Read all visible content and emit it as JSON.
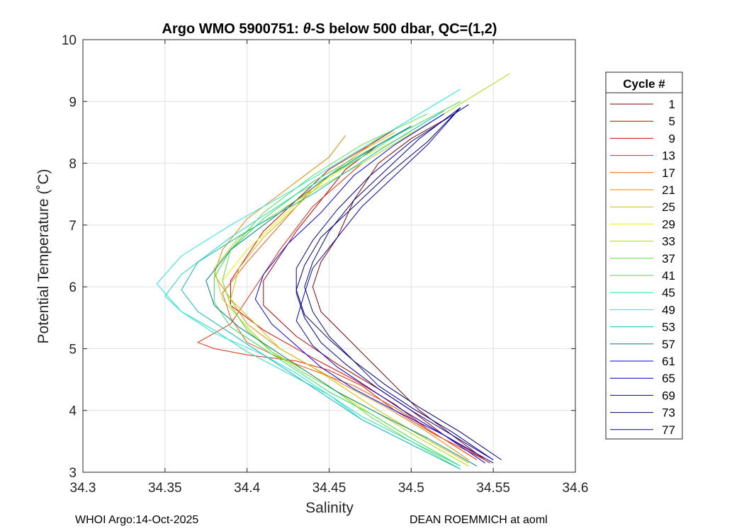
{
  "chart_data": {
    "type": "line",
    "title_prefix": "Argo WMO 5900751: ",
    "title_theta": "θ",
    "title_suffix": "-S below 500 dbar,  QC=(1,2)",
    "xlabel": "Salinity",
    "ylabel": "Potential Temperature (˚C)",
    "xlim": [
      34.3,
      34.6
    ],
    "ylim": [
      3,
      10
    ],
    "xticks": [
      34.3,
      34.35,
      34.4,
      34.45,
      34.5,
      34.55,
      34.6
    ],
    "xtick_labels": [
      "34.3",
      "34.35",
      "34.4",
      "34.45",
      "34.5",
      "34.55",
      "34.6"
    ],
    "yticks": [
      3,
      4,
      5,
      6,
      7,
      8,
      9,
      10
    ],
    "ytick_labels": [
      "3",
      "4",
      "5",
      "6",
      "7",
      "8",
      "9",
      "10"
    ],
    "grid": true,
    "legend": {
      "title": "Cycle #",
      "location": "outside-right",
      "entries": [
        {
          "label": "1",
          "color": "#800000"
        },
        {
          "label": "5",
          "color": "#b30000"
        },
        {
          "label": "9",
          "color": "#e00000"
        },
        {
          "label": "13",
          "color": "#e82a10"
        },
        {
          "label": "17",
          "color": "#f05a10"
        },
        {
          "label": "21",
          "color": "#e08a00"
        },
        {
          "label": "25",
          "color": "#d0c000"
        },
        {
          "label": "29",
          "color": "#f0f000"
        },
        {
          "label": "33",
          "color": "#a8e000"
        },
        {
          "label": "37",
          "color": "#60e040"
        },
        {
          "label": "41",
          "color": "#30e060"
        },
        {
          "label": "45",
          "color": "#20e0b0"
        },
        {
          "label": "49",
          "color": "#20e8e8"
        },
        {
          "label": "53",
          "color": "#10b8c8"
        },
        {
          "label": "57",
          "color": "#008080"
        },
        {
          "label": "61",
          "color": "#0000ff"
        },
        {
          "label": "65",
          "color": "#0000c0"
        },
        {
          "label": "69",
          "color": "#000090"
        },
        {
          "label": "73",
          "color": "#000070"
        },
        {
          "label": "77",
          "color": "#0000a0"
        }
      ]
    },
    "series": [
      {
        "name": "1",
        "color": "#800000",
        "s": [
          34.545,
          34.525,
          34.505,
          34.49,
          34.475,
          34.46,
          34.445,
          34.44,
          34.445,
          34.455,
          34.465,
          34.48,
          34.5,
          34.52
        ],
        "t": [
          3.2,
          3.6,
          4.0,
          4.4,
          4.8,
          5.2,
          5.6,
          6.0,
          6.4,
          6.8,
          7.4,
          8.0,
          8.4,
          8.7
        ]
      },
      {
        "name": "5",
        "color": "#b30000",
        "s": [
          34.548,
          34.52,
          34.5,
          34.48,
          34.455,
          34.43,
          34.41,
          34.41,
          34.42,
          34.43,
          34.445,
          34.46,
          34.48,
          34.5
        ],
        "t": [
          3.15,
          3.6,
          4.0,
          4.35,
          4.75,
          5.2,
          5.7,
          6.1,
          6.5,
          6.9,
          7.4,
          7.9,
          8.3,
          8.6
        ]
      },
      {
        "name": "9",
        "color": "#e00000",
        "s": [
          34.54,
          34.51,
          34.49,
          34.465,
          34.44,
          34.41,
          34.39,
          34.39,
          34.4,
          34.41,
          34.43,
          34.45,
          34.475,
          34.49
        ],
        "t": [
          3.2,
          3.7,
          4.1,
          4.5,
          4.85,
          5.3,
          5.7,
          6.1,
          6.5,
          6.9,
          7.4,
          7.9,
          8.3,
          8.55
        ]
      },
      {
        "name": "13",
        "color": "#e82a10",
        "s": [
          34.545,
          34.515,
          34.49,
          34.47,
          34.45,
          34.43,
          34.4,
          34.38,
          34.37,
          34.39,
          34.405,
          34.42,
          34.44,
          34.47
        ],
        "t": [
          3.2,
          3.6,
          4.0,
          4.4,
          4.65,
          4.8,
          4.9,
          5.0,
          5.1,
          5.4,
          6.0,
          6.6,
          7.3,
          8.0
        ]
      },
      {
        "name": "17",
        "color": "#f05a10",
        "s": [
          34.54,
          34.51,
          34.49,
          34.465,
          34.44,
          34.42,
          34.4,
          34.39,
          34.385,
          34.4,
          34.42,
          34.44,
          34.46,
          34.48
        ],
        "t": [
          3.2,
          3.7,
          4.05,
          4.4,
          4.65,
          4.85,
          5.1,
          5.5,
          5.9,
          6.4,
          7.0,
          7.6,
          8.0,
          8.4
        ]
      },
      {
        "name": "21",
        "color": "#e08a00",
        "s": [
          34.535,
          34.51,
          34.485,
          34.46,
          34.44,
          34.42,
          34.4,
          34.39,
          34.38,
          34.385,
          34.4,
          34.425,
          34.45,
          34.46
        ],
        "t": [
          3.2,
          3.65,
          4.05,
          4.4,
          4.7,
          5.0,
          5.4,
          5.8,
          6.2,
          6.6,
          7.1,
          7.6,
          8.1,
          8.45
        ]
      },
      {
        "name": "25",
        "color": "#d0c000",
        "s": [
          34.535,
          34.505,
          34.48,
          34.46,
          34.44,
          34.42,
          34.405,
          34.39,
          34.395,
          34.41,
          34.43,
          34.45,
          34.47,
          34.49
        ],
        "t": [
          3.15,
          3.6,
          4.0,
          4.35,
          4.7,
          5.0,
          5.4,
          5.8,
          6.3,
          6.8,
          7.3,
          7.8,
          8.2,
          8.5
        ]
      },
      {
        "name": "29",
        "color": "#f0f000",
        "s": [
          34.53,
          34.5,
          34.475,
          34.455,
          34.435,
          34.415,
          34.4,
          34.39,
          34.385,
          34.4,
          34.42,
          34.44,
          34.47,
          34.5
        ],
        "t": [
          3.1,
          3.55,
          3.95,
          4.3,
          4.65,
          4.95,
          5.3,
          5.7,
          6.1,
          6.6,
          7.1,
          7.6,
          8.1,
          8.5
        ]
      },
      {
        "name": "33",
        "color": "#a8e000",
        "s": [
          34.535,
          34.505,
          34.48,
          34.455,
          34.435,
          34.415,
          34.4,
          34.385,
          34.38,
          34.395,
          34.43,
          34.47,
          34.52,
          34.56
        ],
        "t": [
          3.1,
          3.55,
          3.95,
          4.3,
          4.65,
          4.95,
          5.35,
          5.8,
          6.3,
          6.8,
          7.4,
          8.0,
          8.8,
          9.45
        ]
      },
      {
        "name": "37",
        "color": "#60e040",
        "s": [
          34.53,
          34.5,
          34.475,
          34.455,
          34.435,
          34.415,
          34.4,
          34.39,
          34.385,
          34.39,
          34.41,
          34.44,
          34.47,
          34.51
        ],
        "t": [
          3.05,
          3.5,
          3.9,
          4.3,
          4.6,
          4.95,
          5.3,
          5.7,
          6.1,
          6.6,
          7.2,
          7.8,
          8.3,
          8.8
        ]
      },
      {
        "name": "41",
        "color": "#30e060",
        "s": [
          34.53,
          34.5,
          34.475,
          34.45,
          34.43,
          34.41,
          34.39,
          34.38,
          34.38,
          34.39,
          34.41,
          34.44,
          34.48,
          34.53
        ],
        "t": [
          3.1,
          3.55,
          3.95,
          4.3,
          4.65,
          5.0,
          5.35,
          5.75,
          6.15,
          6.6,
          7.1,
          7.7,
          8.3,
          9.0
        ]
      },
      {
        "name": "45",
        "color": "#20e0b0",
        "s": [
          34.53,
          34.5,
          34.47,
          34.45,
          34.425,
          34.4,
          34.38,
          34.36,
          34.35,
          34.36,
          34.39,
          34.43,
          34.47,
          34.5
        ],
        "t": [
          3.1,
          3.5,
          3.9,
          4.25,
          4.6,
          4.95,
          5.3,
          5.6,
          5.85,
          6.2,
          6.8,
          7.5,
          8.1,
          8.6
        ]
      },
      {
        "name": "49",
        "color": "#20e8e8",
        "s": [
          34.53,
          34.5,
          34.47,
          34.45,
          34.43,
          34.41,
          34.38,
          34.36,
          34.345,
          34.36,
          34.39,
          34.43,
          34.48,
          34.53
        ],
        "t": [
          3.05,
          3.45,
          3.85,
          4.25,
          4.6,
          4.9,
          5.25,
          5.6,
          6.05,
          6.5,
          7.0,
          7.6,
          8.4,
          9.2
        ]
      },
      {
        "name": "53",
        "color": "#10b8c8",
        "s": [
          34.53,
          34.5,
          34.47,
          34.45,
          34.43,
          34.41,
          34.39,
          34.37,
          34.36,
          34.37,
          34.4,
          34.44,
          34.48,
          34.52
        ],
        "t": [
          3.05,
          3.45,
          3.85,
          4.2,
          4.55,
          4.9,
          5.25,
          5.6,
          5.95,
          6.4,
          6.9,
          7.5,
          8.2,
          8.85
        ]
      },
      {
        "name": "57",
        "color": "#008080",
        "s": [
          34.54,
          34.51,
          34.48,
          34.455,
          34.435,
          34.415,
          34.395,
          34.38,
          34.375,
          34.39,
          34.42,
          34.45,
          34.48,
          34.5
        ],
        "t": [
          3.1,
          3.55,
          3.95,
          4.3,
          4.65,
          5.0,
          5.35,
          5.7,
          6.1,
          6.6,
          7.2,
          7.8,
          8.3,
          8.6
        ]
      },
      {
        "name": "61",
        "color": "#0000ff",
        "s": [
          34.545,
          34.52,
          34.49,
          34.465,
          34.445,
          34.43,
          34.415,
          34.405,
          34.41,
          34.425,
          34.445,
          34.465,
          34.49,
          34.52
        ],
        "t": [
          3.15,
          3.6,
          4.0,
          4.35,
          4.7,
          5.05,
          5.4,
          5.8,
          6.2,
          6.7,
          7.2,
          7.8,
          8.3,
          8.8
        ]
      },
      {
        "name": "65",
        "color": "#0000c0",
        "s": [
          34.55,
          34.52,
          34.495,
          34.475,
          34.455,
          34.44,
          34.43,
          34.435,
          34.44,
          34.455,
          34.47,
          34.49,
          34.51,
          34.53
        ],
        "t": [
          3.15,
          3.6,
          4.0,
          4.35,
          4.7,
          5.05,
          5.45,
          5.9,
          6.3,
          6.8,
          7.3,
          7.8,
          8.3,
          8.9
        ]
      },
      {
        "name": "69",
        "color": "#000090",
        "s": [
          34.55,
          34.525,
          34.5,
          34.48,
          34.465,
          34.45,
          34.44,
          34.435,
          34.44,
          34.45,
          34.465,
          34.485,
          34.505,
          34.53
        ],
        "t": [
          3.2,
          3.65,
          4.05,
          4.4,
          4.8,
          5.2,
          5.6,
          6.0,
          6.4,
          6.9,
          7.4,
          7.9,
          8.4,
          8.9
        ]
      },
      {
        "name": "73",
        "color": "#000070",
        "s": [
          34.555,
          34.53,
          34.505,
          34.485,
          34.465,
          34.45,
          34.435,
          34.43,
          34.435,
          34.445,
          34.465,
          34.485,
          34.51,
          34.53
        ],
        "t": [
          3.2,
          3.65,
          4.05,
          4.4,
          4.8,
          5.15,
          5.55,
          5.95,
          6.35,
          6.8,
          7.3,
          7.8,
          8.35,
          8.9
        ]
      },
      {
        "name": "77",
        "color": "#0000a0",
        "s": [
          34.55,
          34.525,
          34.5,
          34.48,
          34.46,
          34.445,
          34.435,
          34.43,
          34.43,
          34.44,
          34.455,
          34.475,
          34.5,
          34.535
        ],
        "t": [
          3.2,
          3.6,
          4.0,
          4.35,
          4.75,
          5.1,
          5.5,
          5.9,
          6.3,
          6.75,
          7.25,
          7.8,
          8.35,
          8.95
        ]
      }
    ]
  },
  "footer": {
    "left": "WHOI Argo:14-Oct-2025",
    "right": "DEAN ROEMMICH at aoml"
  }
}
